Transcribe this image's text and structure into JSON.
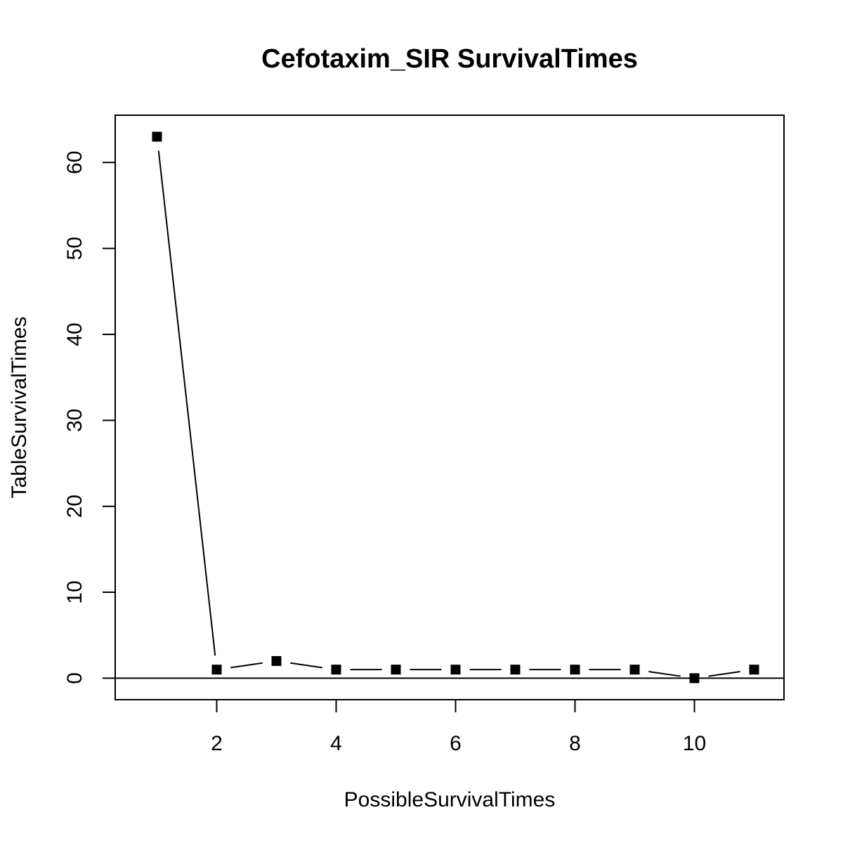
{
  "chart_data": {
    "type": "line",
    "title": "Cefotaxim_SIR SurvivalTimes",
    "xlabel": "PossibleSurvivalTimes",
    "ylabel": "TableSurvivalTimes",
    "x": [
      1,
      2,
      3,
      4,
      5,
      6,
      7,
      8,
      9,
      10,
      11
    ],
    "values": [
      63,
      1,
      2,
      1,
      1,
      1,
      1,
      1,
      1,
      0,
      1
    ],
    "xlim": [
      0.3,
      11.5
    ],
    "ylim": [
      -2.5,
      65.5
    ],
    "xticks": [
      2,
      4,
      6,
      8,
      10
    ],
    "yticks": [
      0,
      10,
      20,
      30,
      40,
      50,
      60
    ],
    "reference_line_y": 0,
    "marker": "filled-square",
    "grid": false,
    "legend": "none"
  }
}
